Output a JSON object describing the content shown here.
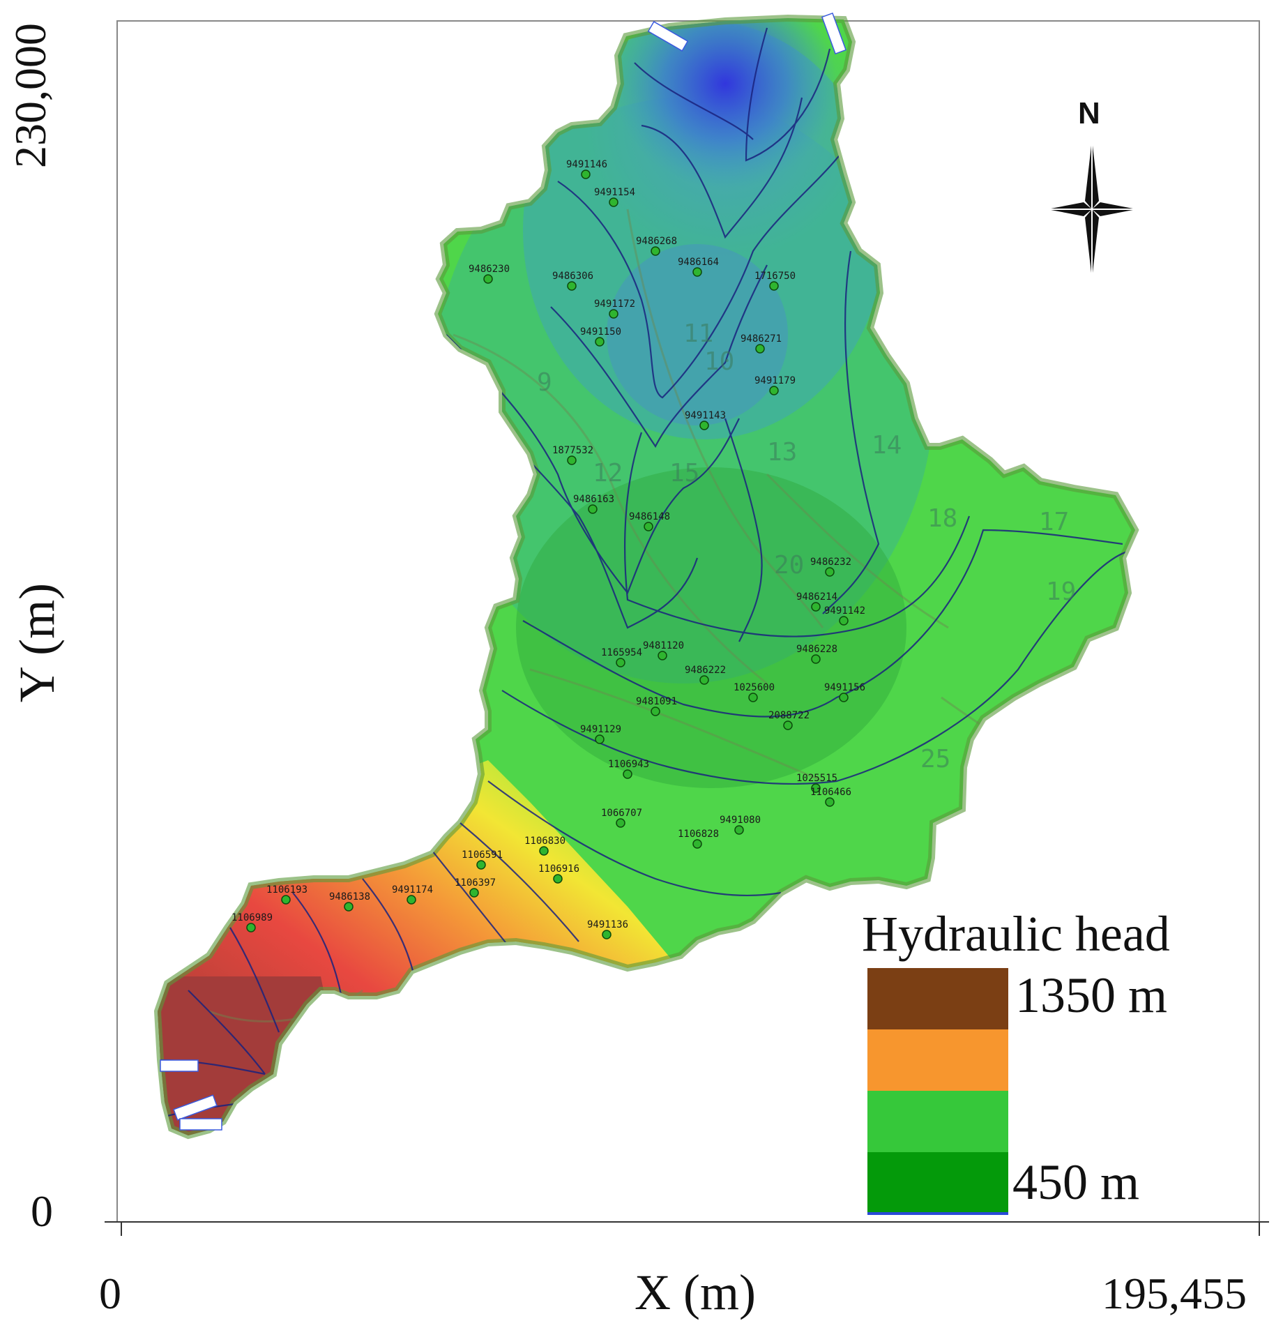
{
  "axes": {
    "x_title": "X (m)",
    "y_title": "Y (m)",
    "x_min": "0",
    "x_max": "195,455",
    "y_min": "0",
    "y_max": "230,000"
  },
  "legend": {
    "title": "Hydraulic head",
    "max_label": "1350 m",
    "min_label": "450 m",
    "swatches": [
      "#7b3f14",
      "#f7962e",
      "#36c83a",
      "#049a0a"
    ]
  },
  "north_arrow": {
    "label": "N"
  },
  "colors": {
    "high_head": "#a83a38",
    "mid_head": "#f0e030",
    "low_head": "#48d848",
    "lowest_head": "#3c3cdc",
    "contour": "#1a237e",
    "well_marker": "#2fb52f"
  },
  "wells": [
    "9491146",
    "9491154",
    "9486268",
    "9486164",
    "1716750",
    "9486230",
    "9486306",
    "9491172",
    "9491150",
    "9486271",
    "9491179",
    "9491143",
    "1877532",
    "9486163",
    "9486148",
    "9486232",
    "9486214",
    "9491142",
    "1165954",
    "9481120",
    "9486222",
    "9486228",
    "1025600",
    "9481091",
    "2088722",
    "9491156",
    "9491129",
    "1106943",
    "1025515",
    "1106466",
    "9491080",
    "1106828",
    "1066707",
    "1106830",
    "1106591",
    "1106397",
    "9491174",
    "9486138",
    "1106193",
    "1106989",
    "1106916",
    "9491136"
  ],
  "contour_labels": [
    "11",
    "9",
    "10",
    "12",
    "13",
    "14",
    "15",
    "17",
    "18",
    "19",
    "20",
    "25"
  ]
}
